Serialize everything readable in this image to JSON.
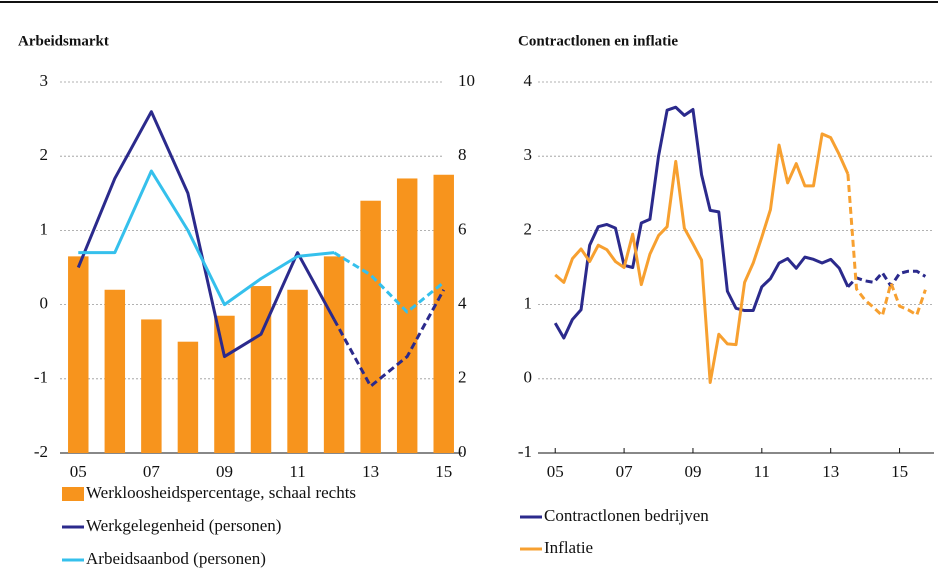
{
  "chart_data": [
    {
      "type": "combo",
      "title": "Arbeidsmarkt",
      "categories": [
        "05",
        null,
        "07",
        null,
        "09",
        null,
        "11",
        null,
        "13",
        null,
        "15"
      ],
      "ylim": [
        -2,
        3
      ],
      "yticks": [
        -2,
        -1,
        0,
        1,
        2,
        3
      ],
      "y2lim": [
        0,
        10
      ],
      "y2ticks": [
        0,
        2,
        4,
        6,
        8,
        10
      ],
      "grid": true,
      "legend": "bottom",
      "series": [
        {
          "name": "Werkloosheidspercentage, schaal rechts",
          "type": "bar",
          "axis": "y2",
          "color": "#F7941D",
          "values": [
            5.3,
            4.4,
            3.6,
            3.0,
            3.7,
            4.5,
            4.4,
            5.3,
            6.8,
            7.4,
            7.5
          ]
        },
        {
          "name": "Werkgelegenheid (personen)",
          "type": "line",
          "color": "#2B2A8C",
          "dash_from": 7,
          "values": [
            0.5,
            1.7,
            2.6,
            1.5,
            -0.7,
            -0.4,
            0.7,
            -0.2,
            -1.1,
            -0.7,
            0.2
          ]
        },
        {
          "name": "Arbeidsaanbod (personen)",
          "type": "line",
          "color": "#35C0EC",
          "dash_from": 7,
          "values": [
            0.7,
            0.7,
            1.8,
            1.0,
            0.0,
            0.35,
            0.65,
            0.7,
            0.4,
            -0.1,
            0.3
          ]
        }
      ]
    },
    {
      "type": "line",
      "title": "Contractlonen en inflatie",
      "x": [
        2005,
        2005.25,
        2005.5,
        2005.75,
        2006,
        2006.25,
        2006.5,
        2006.75,
        2007,
        2007.25,
        2007.5,
        2007.75,
        2008,
        2008.25,
        2008.5,
        2008.75,
        2009,
        2009.25,
        2009.5,
        2009.75,
        2010,
        2010.25,
        2010.5,
        2010.75,
        2011,
        2011.25,
        2011.5,
        2011.75,
        2012,
        2012.25,
        2012.5,
        2012.75,
        2013,
        2013.25,
        2013.5,
        2013.75,
        2014,
        2014.25,
        2014.5,
        2014.75,
        2015,
        2015.25,
        2015.5,
        2015.75
      ],
      "xlim": [
        2004.5,
        2016
      ],
      "xticks": [
        {
          "value": 2005,
          "label": "05"
        },
        {
          "value": 2007,
          "label": "07"
        },
        {
          "value": 2009,
          "label": "09"
        },
        {
          "value": 2011,
          "label": "11"
        },
        {
          "value": 2013,
          "label": "13"
        },
        {
          "value": 2015,
          "label": "15"
        }
      ],
      "ylim": [
        -1,
        4
      ],
      "yticks": [
        -1,
        0,
        1,
        2,
        3,
        4
      ],
      "grid": true,
      "legend": "bottom",
      "series": [
        {
          "name": "Contractlonen bedrijven",
          "color": "#2B2A8C",
          "dash_from": 34,
          "values": [
            0.75,
            0.55,
            0.8,
            0.93,
            1.8,
            2.05,
            2.08,
            2.03,
            1.53,
            1.5,
            2.1,
            2.15,
            3.0,
            3.62,
            3.66,
            3.55,
            3.63,
            2.75,
            2.27,
            2.25,
            1.18,
            0.95,
            0.92,
            0.92,
            1.24,
            1.35,
            1.56,
            1.62,
            1.49,
            1.64,
            1.61,
            1.56,
            1.61,
            1.49,
            1.24,
            1.36,
            1.32,
            1.3,
            1.43,
            1.25,
            1.42,
            1.45,
            1.45,
            1.38
          ]
        },
        {
          "name": "Inflatie",
          "color": "#F7A030",
          "dash_from": 34,
          "values": [
            1.4,
            1.3,
            1.62,
            1.75,
            1.58,
            1.8,
            1.74,
            1.58,
            1.5,
            1.95,
            1.27,
            1.68,
            1.93,
            2.05,
            2.93,
            2.03,
            1.82,
            1.6,
            -0.05,
            0.6,
            0.47,
            0.46,
            1.3,
            1.56,
            1.91,
            2.28,
            3.15,
            2.64,
            2.9,
            2.6,
            2.6,
            3.3,
            3.25,
            3.02,
            2.76,
            1.21,
            1.06,
            0.96,
            0.85,
            1.29,
            0.98,
            0.93,
            0.86,
            1.2
          ]
        }
      ]
    }
  ]
}
